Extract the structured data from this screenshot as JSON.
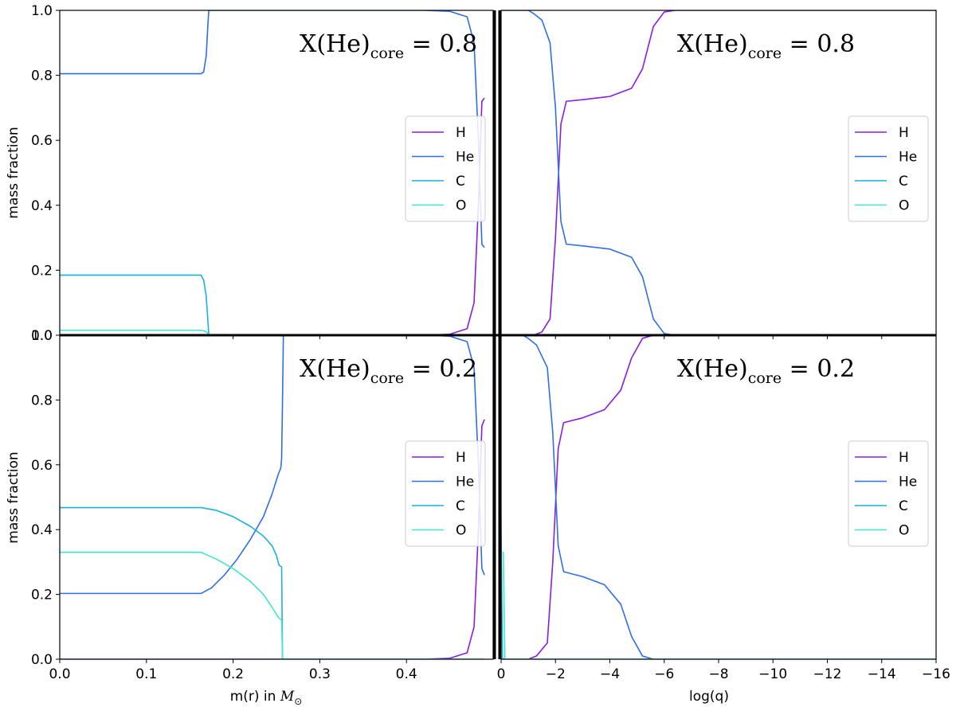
{
  "figure": {
    "left_xlabel": "m(r) in M⊙",
    "left_xlabel_text": "m(r) in ",
    "left_xlabel_symbol": "M",
    "left_xlabel_sub": "⊙",
    "right_xlabel": "log(q)",
    "ylabel": "mass fraction"
  },
  "colors": {
    "H": "#8a1ee0",
    "He": "#2f6fe6",
    "C": "#17b3d9",
    "O": "#3ee8c9",
    "axes": "#000000"
  },
  "chart_data": [
    {
      "type": "line",
      "panel": "top-left",
      "title_prefix": "X(He)",
      "title_sub": "core",
      "title_value": "= 0.8",
      "xlim": [
        0.0,
        0.5
      ],
      "ylim": [
        0.0,
        1.0
      ],
      "xticks": [
        "0.0",
        "0.1",
        "0.2",
        "0.3",
        "0.4"
      ],
      "yticks": [
        "0.0",
        "0.2",
        "0.4",
        "0.6",
        "0.8",
        "1.0"
      ],
      "legend": {
        "placement": "center-right",
        "entries": [
          "H",
          "He",
          "C",
          "O"
        ]
      },
      "series": [
        {
          "name": "H",
          "points": [
            [
              0,
              0
            ],
            [
              0.42,
              0
            ],
            [
              0.45,
              0.003
            ],
            [
              0.47,
              0.02
            ],
            [
              0.478,
              0.1
            ],
            [
              0.483,
              0.4
            ],
            [
              0.487,
              0.72
            ],
            [
              0.49,
              0.73
            ]
          ]
        },
        {
          "name": "He",
          "points": [
            [
              0,
              0.805
            ],
            [
              0.163,
              0.805
            ],
            [
              0.166,
              0.81
            ],
            [
              0.169,
              0.86
            ],
            [
              0.171,
              0.96
            ],
            [
              0.172,
              1.0
            ],
            [
              0.42,
              1.0
            ],
            [
              0.45,
              0.997
            ],
            [
              0.47,
              0.98
            ],
            [
              0.478,
              0.9
            ],
            [
              0.483,
              0.6
            ],
            [
              0.487,
              0.28
            ],
            [
              0.49,
              0.27
            ]
          ]
        },
        {
          "name": "C",
          "points": [
            [
              0,
              0.185
            ],
            [
              0.163,
              0.185
            ],
            [
              0.166,
              0.17
            ],
            [
              0.169,
              0.12
            ],
            [
              0.171,
              0.04
            ],
            [
              0.172,
              0.0
            ],
            [
              0.49,
              0.0
            ]
          ]
        },
        {
          "name": "O",
          "points": [
            [
              0,
              0.015
            ],
            [
              0.163,
              0.015
            ],
            [
              0.168,
              0.012
            ],
            [
              0.171,
              0.005
            ],
            [
              0.172,
              0.0
            ],
            [
              0.49,
              0.0
            ]
          ]
        }
      ]
    },
    {
      "type": "line",
      "panel": "top-right",
      "title_prefix": "X(He)",
      "title_sub": "core",
      "title_value": "= 0.8",
      "xlim": [
        0.0,
        -16.0
      ],
      "ylim": [
        0.0,
        1.0
      ],
      "xticks": [
        "0",
        "−2",
        "−4",
        "−6",
        "−8",
        "−10",
        "−12",
        "−14",
        "−16"
      ],
      "yticks": [],
      "legend": {
        "placement": "center-right",
        "entries": [
          "H",
          "He",
          "C",
          "O"
        ]
      },
      "series": [
        {
          "name": "H",
          "points": [
            [
              0,
              0.0
            ],
            [
              -1.2,
              0.0
            ],
            [
              -1.5,
              0.01
            ],
            [
              -1.8,
              0.05
            ],
            [
              -2.0,
              0.3
            ],
            [
              -2.2,
              0.65
            ],
            [
              -2.4,
              0.72
            ],
            [
              -3.0,
              0.725
            ],
            [
              -4.0,
              0.735
            ],
            [
              -4.8,
              0.76
            ],
            [
              -5.2,
              0.82
            ],
            [
              -5.6,
              0.95
            ],
            [
              -6.0,
              0.995
            ],
            [
              -6.4,
              1.0
            ],
            [
              -16,
              1.0
            ]
          ]
        },
        {
          "name": "He",
          "points": [
            [
              0,
              0.805
            ],
            [
              0.03,
              0.805
            ],
            [
              0.06,
              1.0
            ],
            [
              -1.0,
              1.0
            ],
            [
              -1.2,
              0.99
            ],
            [
              -1.5,
              0.97
            ],
            [
              -1.8,
              0.9
            ],
            [
              -2.0,
              0.7
            ],
            [
              -2.2,
              0.35
            ],
            [
              -2.4,
              0.28
            ],
            [
              -3.0,
              0.275
            ],
            [
              -4.0,
              0.265
            ],
            [
              -4.8,
              0.24
            ],
            [
              -5.2,
              0.18
            ],
            [
              -5.6,
              0.05
            ],
            [
              -6.0,
              0.005
            ],
            [
              -6.4,
              0.0
            ],
            [
              -16,
              0.0
            ]
          ]
        },
        {
          "name": "C",
          "points": [
            [
              0,
              0.185
            ],
            [
              0.01,
              0.185
            ],
            [
              0.02,
              0.0
            ],
            [
              -16,
              0.0
            ]
          ]
        },
        {
          "name": "O",
          "points": [
            [
              0,
              0.015
            ],
            [
              0.01,
              0.015
            ],
            [
              0.02,
              0.0
            ],
            [
              -16,
              0.0
            ]
          ]
        }
      ]
    },
    {
      "type": "line",
      "panel": "bottom-left",
      "title_prefix": "X(He)",
      "title_sub": "core",
      "title_value": "= 0.2",
      "xlim": [
        0.0,
        0.5
      ],
      "ylim": [
        0.0,
        1.0
      ],
      "xticks": [
        "0.0",
        "0.1",
        "0.2",
        "0.3",
        "0.4"
      ],
      "yticks": [
        "0.0",
        "0.2",
        "0.4",
        "0.6",
        "0.8",
        "1.0"
      ],
      "legend": {
        "placement": "center-right",
        "entries": [
          "H",
          "He",
          "C",
          "O"
        ]
      },
      "series": [
        {
          "name": "H",
          "points": [
            [
              0,
              0
            ],
            [
              0.42,
              0
            ],
            [
              0.45,
              0.003
            ],
            [
              0.47,
              0.02
            ],
            [
              0.478,
              0.1
            ],
            [
              0.483,
              0.4
            ],
            [
              0.487,
              0.72
            ],
            [
              0.49,
              0.74
            ]
          ]
        },
        {
          "name": "He",
          "points": [
            [
              0,
              0.203
            ],
            [
              0.163,
              0.203
            ],
            [
              0.175,
              0.22
            ],
            [
              0.19,
              0.26
            ],
            [
              0.205,
              0.31
            ],
            [
              0.22,
              0.37
            ],
            [
              0.235,
              0.44
            ],
            [
              0.245,
              0.51
            ],
            [
              0.252,
              0.57
            ],
            [
              0.255,
              0.59
            ],
            [
              0.256,
              0.62
            ],
            [
              0.257,
              0.8
            ],
            [
              0.258,
              1.0
            ],
            [
              0.42,
              1.0
            ],
            [
              0.45,
              0.997
            ],
            [
              0.47,
              0.98
            ],
            [
              0.478,
              0.9
            ],
            [
              0.483,
              0.6
            ],
            [
              0.487,
              0.28
            ],
            [
              0.49,
              0.26
            ]
          ]
        },
        {
          "name": "C",
          "points": [
            [
              0,
              0.468
            ],
            [
              0.163,
              0.468
            ],
            [
              0.18,
              0.46
            ],
            [
              0.2,
              0.44
            ],
            [
              0.22,
              0.41
            ],
            [
              0.235,
              0.38
            ],
            [
              0.245,
              0.35
            ],
            [
              0.25,
              0.32
            ],
            [
              0.253,
              0.29
            ],
            [
              0.256,
              0.285
            ],
            [
              0.257,
              0.0
            ],
            [
              0.49,
              0.0
            ]
          ]
        },
        {
          "name": "O",
          "points": [
            [
              0,
              0.33
            ],
            [
              0.163,
              0.33
            ],
            [
              0.18,
              0.31
            ],
            [
              0.2,
              0.28
            ],
            [
              0.22,
              0.24
            ],
            [
              0.235,
              0.2
            ],
            [
              0.245,
              0.16
            ],
            [
              0.252,
              0.13
            ],
            [
              0.256,
              0.12
            ],
            [
              0.257,
              0.0
            ],
            [
              0.49,
              0.0
            ]
          ]
        }
      ]
    },
    {
      "type": "line",
      "panel": "bottom-right",
      "title_prefix": "X(He)",
      "title_sub": "core",
      "title_value": "= 0.2",
      "xlim": [
        0.0,
        -16.0
      ],
      "ylim": [
        0.0,
        1.0
      ],
      "xticks": [
        "0",
        "−2",
        "−4",
        "−6",
        "−8",
        "−10",
        "−12",
        "−14",
        "−16"
      ],
      "yticks": [],
      "legend": {
        "placement": "center-right",
        "entries": [
          "H",
          "He",
          "C",
          "O"
        ]
      },
      "series": [
        {
          "name": "H",
          "points": [
            [
              0,
              0.0
            ],
            [
              -1.0,
              0.0
            ],
            [
              -1.3,
              0.01
            ],
            [
              -1.7,
              0.05
            ],
            [
              -1.9,
              0.3
            ],
            [
              -2.1,
              0.65
            ],
            [
              -2.3,
              0.73
            ],
            [
              -3.0,
              0.745
            ],
            [
              -3.8,
              0.77
            ],
            [
              -4.4,
              0.83
            ],
            [
              -4.8,
              0.93
            ],
            [
              -5.2,
              0.99
            ],
            [
              -5.6,
              1.0
            ],
            [
              -16,
              1.0
            ]
          ]
        },
        {
          "name": "He",
          "points": [
            [
              0.3,
              0.2
            ],
            [
              0.31,
              1.0
            ],
            [
              -0.8,
              1.0
            ],
            [
              -1.0,
              0.99
            ],
            [
              -1.3,
              0.97
            ],
            [
              -1.7,
              0.9
            ],
            [
              -1.9,
              0.7
            ],
            [
              -2.1,
              0.35
            ],
            [
              -2.3,
              0.27
            ],
            [
              -3.0,
              0.255
            ],
            [
              -3.8,
              0.23
            ],
            [
              -4.4,
              0.17
            ],
            [
              -4.8,
              0.07
            ],
            [
              -5.2,
              0.01
            ],
            [
              -5.6,
              0.0
            ],
            [
              -16,
              0.0
            ]
          ]
        },
        {
          "name": "C",
          "points": [
            [
              0.03,
              0.468
            ],
            [
              0.01,
              0.468
            ],
            [
              -0.05,
              0.0
            ],
            [
              -16,
              0.0
            ]
          ]
        },
        {
          "name": "O",
          "points": [
            [
              -0.05,
              0.33
            ],
            [
              -0.08,
              0.33
            ],
            [
              -0.14,
              0.0
            ],
            [
              -16,
              0.0
            ]
          ]
        }
      ]
    }
  ]
}
